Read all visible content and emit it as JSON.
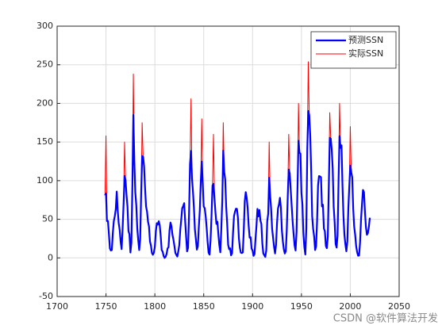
{
  "chart_data": {
    "type": "line",
    "watermark": "CSDN @软件算法开发",
    "x": [
      1749,
      1750,
      1751,
      1752,
      1753,
      1754,
      1755,
      1756,
      1757,
      1758,
      1759,
      1760,
      1761,
      1762,
      1763,
      1764,
      1765,
      1766,
      1767,
      1768,
      1769,
      1770,
      1771,
      1772,
      1773,
      1774,
      1775,
      1776,
      1777,
      1778,
      1779,
      1780,
      1781,
      1782,
      1783,
      1784,
      1785,
      1786,
      1787,
      1788,
      1789,
      1790,
      1791,
      1792,
      1793,
      1794,
      1795,
      1796,
      1797,
      1798,
      1799,
      1800,
      1801,
      1802,
      1803,
      1804,
      1805,
      1806,
      1807,
      1808,
      1809,
      1810,
      1811,
      1812,
      1813,
      1814,
      1815,
      1816,
      1817,
      1818,
      1819,
      1820,
      1821,
      1822,
      1823,
      1824,
      1825,
      1826,
      1827,
      1828,
      1829,
      1830,
      1831,
      1832,
      1833,
      1834,
      1835,
      1836,
      1837,
      1838,
      1839,
      1840,
      1841,
      1842,
      1843,
      1844,
      1845,
      1846,
      1847,
      1848,
      1849,
      1850,
      1851,
      1852,
      1853,
      1854,
      1855,
      1856,
      1857,
      1858,
      1859,
      1860,
      1861,
      1862,
      1863,
      1864,
      1865,
      1866,
      1867,
      1868,
      1869,
      1870,
      1871,
      1872,
      1873,
      1874,
      1875,
      1876,
      1877,
      1878,
      1879,
      1880,
      1881,
      1882,
      1883,
      1884,
      1885,
      1886,
      1887,
      1888,
      1889,
      1890,
      1891,
      1892,
      1893,
      1894,
      1895,
      1896,
      1897,
      1898,
      1899,
      1900,
      1901,
      1902,
      1903,
      1904,
      1905,
      1906,
      1907,
      1908,
      1909,
      1910,
      1911,
      1912,
      1913,
      1914,
      1915,
      1916,
      1917,
      1918,
      1919,
      1920,
      1921,
      1922,
      1923,
      1924,
      1925,
      1926,
      1927,
      1928,
      1929,
      1930,
      1931,
      1932,
      1933,
      1934,
      1935,
      1936,
      1937,
      1938,
      1939,
      1940,
      1941,
      1942,
      1943,
      1944,
      1945,
      1946,
      1947,
      1948,
      1949,
      1950,
      1951,
      1952,
      1953,
      1954,
      1955,
      1956,
      1957,
      1958,
      1959,
      1960,
      1961,
      1962,
      1963,
      1964,
      1965,
      1966,
      1967,
      1968,
      1969,
      1970,
      1971,
      1972,
      1973,
      1974,
      1975,
      1976,
      1977,
      1978,
      1979,
      1980,
      1981,
      1982,
      1983,
      1984,
      1985,
      1986,
      1987,
      1988,
      1989,
      1990,
      1991,
      1992,
      1993,
      1994,
      1995,
      1996,
      1997,
      1998,
      1999,
      2000,
      2001,
      2002,
      2003,
      2004,
      2005,
      2006,
      2007,
      2008,
      2009,
      2010,
      2011,
      2012,
      2013,
      2014,
      2015,
      2016,
      2017,
      2018,
      2019,
      2020
    ],
    "series": [
      {
        "name": "预测SSN",
        "color": "#0000ff",
        "width": 2.2,
        "values": [
          80.9,
          83.4,
          47.7,
          47.8,
          30.7,
          12.2,
          9.6,
          10.2,
          32.4,
          47.6,
          54,
          62.9,
          85.9,
          61.2,
          45.1,
          36.4,
          20.9,
          11.4,
          37.8,
          69.8,
          106.1,
          100.8,
          81.6,
          66.5,
          34.8,
          30.6,
          7,
          19.8,
          92.5,
          185,
          125.9,
          84.8,
          68.1,
          38.5,
          22.8,
          10.2,
          24.1,
          82.9,
          132,
          130.9,
          118.1,
          89.9,
          66.6,
          60,
          46.9,
          41,
          21.3,
          16,
          6.4,
          4.1,
          6.8,
          14.5,
          34,
          45,
          43.1,
          47.5,
          42.2,
          28.1,
          10.1,
          8.1,
          2.5,
          0,
          1.4,
          5,
          12.2,
          13.9,
          35.4,
          45.8,
          41.1,
          30.1,
          23.9,
          15.6,
          6.6,
          4,
          1.8,
          8.5,
          16.6,
          36.3,
          49.6,
          64.2,
          67,
          70.9,
          47.8,
          27.5,
          8.5,
          13.2,
          56.9,
          121.5,
          138.3,
          103.2,
          85.7,
          64.6,
          36.7,
          24.2,
          10.7,
          15,
          40.1,
          61.5,
          98.5,
          124.7,
          96.3,
          66.6,
          64.5,
          54.1,
          39,
          20.6,
          6.7,
          4.3,
          22.7,
          54.8,
          93.8,
          95.8,
          77.2,
          59.1,
          44,
          47,
          30.5,
          16.3,
          7.3,
          37.6,
          74,
          139,
          111.2,
          101.6,
          66.2,
          44.7,
          17,
          11.3,
          12.4,
          3.4,
          6,
          32.3,
          54.3,
          59.7,
          63.7,
          63.5,
          52.2,
          25.4,
          13.1,
          6.8,
          6.3,
          7.1,
          35.6,
          73,
          85.1,
          78,
          64,
          41.8,
          26.2,
          26.7,
          12.1,
          9.5,
          2.7,
          5,
          24.4,
          42,
          63.5,
          53.8,
          62,
          48.5,
          43.9,
          18.6,
          5.7,
          3.6,
          1.4,
          9.6,
          47.4,
          57.1,
          103.9,
          80.6,
          63.6,
          37.6,
          26.1,
          14.2,
          5.8,
          16.7,
          44.3,
          63.9,
          69,
          77.8,
          64.9,
          35.7,
          21.2,
          11.1,
          5.7,
          8.7,
          36.1,
          79.7,
          114.4,
          109.6,
          88.8,
          67.8,
          47.5,
          30.6,
          16.3,
          9.6,
          33.2,
          92.6,
          151.6,
          136.3,
          134.7,
          83.9,
          69.4,
          31.5,
          13.9,
          4.4,
          38,
          141.7,
          190.2,
          184.8,
          159,
          112.3,
          53.9,
          37.6,
          27.9,
          10.2,
          15.1,
          47,
          93.8,
          105.9,
          105.5,
          104.5,
          66.6,
          68.9,
          38,
          34.5,
          15.5,
          12.6,
          27.5,
          92.5,
          155.4,
          154.6,
          140.4,
          115.9,
          66.6,
          45.9,
          17.9,
          13.4,
          29.4,
          100.2,
          157.6,
          142.6,
          145.7,
          94.3,
          54.6,
          29.9,
          17.5,
          8.6,
          21.5,
          64.3,
          93.3,
          119.6,
          111,
          104,
          63.7,
          40.4,
          29.8,
          15.2,
          7.5,
          2.9,
          3.1,
          20,
          50,
          70,
          88,
          85,
          60,
          40,
          30,
          32,
          40,
          52
        ]
      },
      {
        "name": "实际SSN",
        "color": "#ff0000",
        "width": 1,
        "values": [
          80.9,
          158,
          47.7,
          47.8,
          30.7,
          12.2,
          9.6,
          10.2,
          32.4,
          47.6,
          54,
          62.9,
          85.9,
          61.2,
          45.1,
          36.4,
          20.9,
          11.4,
          37.8,
          69.8,
          150,
          100.8,
          81.6,
          66.5,
          34.8,
          30.6,
          7,
          19.8,
          92.5,
          238,
          125.9,
          84.8,
          68.1,
          38.5,
          22.8,
          10.2,
          24.1,
          82.9,
          175,
          130.9,
          118.1,
          89.9,
          66.6,
          60,
          46.9,
          41,
          21.3,
          16,
          6.4,
          4.1,
          6.8,
          14.5,
          34,
          45,
          43.1,
          47.5,
          42.2,
          28.1,
          10.1,
          8.1,
          2.5,
          0,
          1.4,
          5,
          12.2,
          13.9,
          35.4,
          45.8,
          41.1,
          30.1,
          23.9,
          15.6,
          6.6,
          4,
          1.8,
          8.5,
          16.6,
          36.3,
          49.6,
          64.2,
          67,
          70.9,
          47.8,
          27.5,
          8.5,
          13.2,
          56.9,
          121.5,
          206,
          103.2,
          85.7,
          64.6,
          36.7,
          24.2,
          10.7,
          15,
          40.1,
          61.5,
          98.5,
          180,
          96.3,
          66.6,
          64.5,
          54.1,
          39,
          20.6,
          6.7,
          4.3,
          22.7,
          54.8,
          93.8,
          160,
          77.2,
          59.1,
          44,
          47,
          30.5,
          16.3,
          7.3,
          37.6,
          74,
          175,
          111.2,
          101.6,
          66.2,
          44.7,
          17,
          11.3,
          12.4,
          3.4,
          6,
          32.3,
          54.3,
          59.7,
          63.7,
          63.5,
          52.2,
          25.4,
          13.1,
          6.8,
          6.3,
          7.1,
          35.6,
          73,
          85.1,
          78,
          64,
          41.8,
          26.2,
          26.7,
          12.1,
          9.5,
          2.7,
          5,
          24.4,
          42,
          63.5,
          53.8,
          62,
          48.5,
          43.9,
          18.6,
          5.7,
          3.6,
          1.4,
          9.6,
          47.4,
          57.1,
          150,
          80.6,
          63.6,
          37.6,
          26.1,
          14.2,
          5.8,
          16.7,
          44.3,
          63.9,
          69,
          77.8,
          64.9,
          35.7,
          21.2,
          11.1,
          5.7,
          8.7,
          36.1,
          79.7,
          160,
          109.6,
          88.8,
          67.8,
          47.5,
          30.6,
          16.3,
          9.6,
          33.2,
          92.6,
          200,
          136.3,
          134.7,
          83.9,
          69.4,
          31.5,
          13.9,
          4.4,
          38,
          141.7,
          254,
          184.8,
          159,
          112.3,
          53.9,
          37.6,
          27.9,
          10.2,
          15.1,
          47,
          93.8,
          105.9,
          105.5,
          104.5,
          66.6,
          68.9,
          38,
          34.5,
          15.5,
          12.6,
          27.5,
          92.5,
          188,
          154.6,
          140.4,
          115.9,
          66.6,
          45.9,
          17.9,
          13.4,
          29.4,
          100.2,
          200,
          142.6,
          145.7,
          94.3,
          54.6,
          29.9,
          17.5,
          8.6,
          21.5,
          64.3,
          93.3,
          170,
          111,
          104,
          63.7,
          40.4,
          29.8,
          15.2,
          7.5,
          2.9,
          3.1,
          null,
          null,
          null,
          null,
          null,
          null,
          null,
          null,
          null,
          null,
          null
        ]
      }
    ],
    "xlim": [
      1700,
      2050
    ],
    "xticks": [
      1700,
      1750,
      1800,
      1850,
      1900,
      1950,
      2000,
      2050
    ],
    "ylim": [
      -50,
      300
    ],
    "yticks": [
      -50,
      0,
      50,
      100,
      150,
      200,
      250,
      300
    ],
    "grid": true,
    "legend": "upper right"
  }
}
